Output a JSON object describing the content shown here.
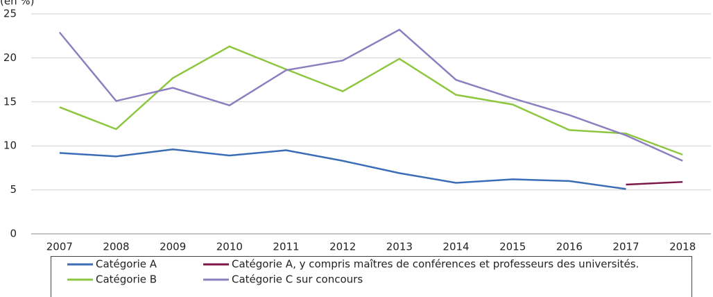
{
  "chart_data": {
    "type": "line",
    "y_label": "(en %)",
    "categories": [
      "2007",
      "2008",
      "2009",
      "2010",
      "2011",
      "2012",
      "2013",
      "2014",
      "2015",
      "2016",
      "2017",
      "2018"
    ],
    "series": [
      {
        "name": "Catégorie A",
        "color": "#3a6db5",
        "values": [
          9.2,
          8.8,
          9.6,
          8.9,
          9.5,
          8.3,
          6.9,
          5.8,
          6.2,
          6.0,
          5.1,
          null
        ]
      },
      {
        "name": "Catégorie A, y compris maîtres de conférences et professeurs des universités.",
        "color": "#7b1646",
        "values": [
          null,
          null,
          null,
          null,
          null,
          null,
          null,
          null,
          null,
          null,
          5.6,
          5.9
        ]
      },
      {
        "name": "Catégorie B",
        "color": "#8dc63f",
        "values": [
          14.4,
          11.9,
          17.7,
          21.3,
          18.7,
          16.2,
          19.9,
          15.8,
          14.7,
          11.8,
          11.4,
          9.0
        ]
      },
      {
        "name": "Catégorie C sur concours",
        "color": "#8c7fbf",
        "values": [
          22.9,
          15.1,
          16.6,
          14.6,
          18.6,
          19.7,
          23.2,
          17.5,
          15.4,
          13.5,
          11.2,
          8.3
        ]
      }
    ],
    "ylim": [
      0,
      25
    ],
    "yticks": [
      0,
      5,
      10,
      15,
      20,
      25
    ],
    "grid": true,
    "legend": "bottom"
  }
}
